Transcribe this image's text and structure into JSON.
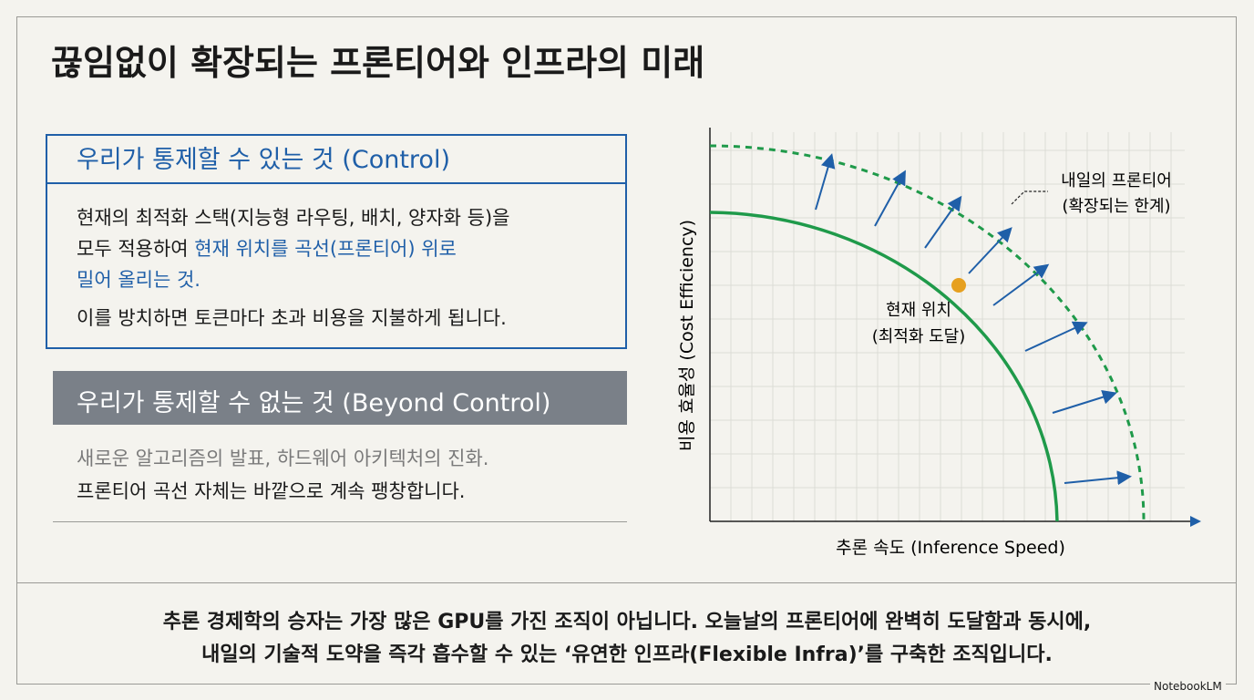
{
  "title": "끊임없이 확장되는 프론티어와 인프라의 미래",
  "control": {
    "heading": "우리가 통제할 수 있는 것 (Control)",
    "lines": [
      "현재의 최적화 스택(지능형 라우팅, 배치, 양자화 등)을",
      "모두 적용하여 "
    ],
    "highlight": [
      "현재 위치를 곡선(프론티어) 위로",
      "밀어 올리는 것."
    ],
    "note": "이를 방치하면 토큰마다 초과 비용을 지불하게 됩니다."
  },
  "beyond": {
    "heading": "우리가 통제할 수 없는 것 (Beyond Control)",
    "lines": [
      "새로운 알고리즘의 발표, 하드웨어 아키텍처의 진화.",
      "프론티어 곡선 자체는 바깥으로 계속 팽창합니다."
    ]
  },
  "diagram": {
    "y_axis": "비용 효율성 (Cost Efficiency)",
    "x_axis": "추론 속도 (Inference Speed)",
    "future_label": [
      "내일의 프론티어",
      "(확장되는 한계)"
    ],
    "current_label": [
      "현재 위치",
      "(최적화 도달)"
    ]
  },
  "footer": [
    "추론 경제학의 승자는 가장 많은 GPU를 가진 조직이 아닙니다. 오늘날의 프론티어에 완벽히 도달함과 동시에,",
    "내일의 기술적 도약을 즉각 흡수할 수 있는 ‘유연한 인프라(Flexible Infra)’를 구축한 조직입니다."
  ],
  "brand": "NotebookLM"
}
